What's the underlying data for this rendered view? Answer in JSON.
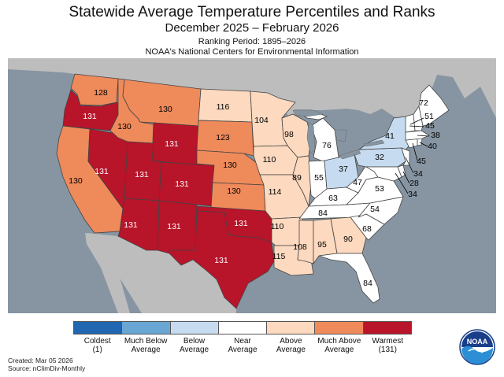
{
  "title": "Statewide Average Temperature Percentiles and Ranks",
  "subtitle": "December 2025 – February 2026",
  "ranking_period": "Ranking Period: 1895–2026",
  "source_org": "NOAA's National Centers for Environmental Information",
  "created": "Created: Mar 05 2026",
  "source": "Source: nClimDiv-Monthly",
  "logo_text": "NOAA",
  "colors": {
    "coldest": "#2066b0",
    "much_below": "#6aa6d4",
    "below": "#c6dbef",
    "near": "#ffffff",
    "above": "#fcd9bf",
    "much_above": "#ef8a5b",
    "warmest": "#b8142a",
    "ocean": "#8795a3",
    "land_outside": "#bdbdbd",
    "lakes": "#8795a3"
  },
  "legend": [
    {
      "label": "Coldest",
      "sub": "(1)",
      "color": "#2066b0"
    },
    {
      "label": "Much Below",
      "sub": "Average",
      "color": "#6aa6d4"
    },
    {
      "label": "Below",
      "sub": "Average",
      "color": "#c6dbef"
    },
    {
      "label": "Near",
      "sub": "Average",
      "color": "#ffffff"
    },
    {
      "label": "Above",
      "sub": "Average",
      "color": "#fcd9bf"
    },
    {
      "label": "Much Above",
      "sub": "Average",
      "color": "#ef8a5b"
    },
    {
      "label": "Warmest",
      "sub": "(131)",
      "color": "#b8142a"
    }
  ],
  "states": [
    {
      "id": "WA",
      "rank": "128",
      "cat": "much_above"
    },
    {
      "id": "OR",
      "rank": "131",
      "cat": "warmest"
    },
    {
      "id": "CA",
      "rank": "130",
      "cat": "much_above"
    },
    {
      "id": "ID",
      "rank": "130",
      "cat": "much_above"
    },
    {
      "id": "NV",
      "rank": "131",
      "cat": "warmest"
    },
    {
      "id": "MT",
      "rank": "130",
      "cat": "much_above"
    },
    {
      "id": "WY",
      "rank": "131",
      "cat": "warmest"
    },
    {
      "id": "UT",
      "rank": "131",
      "cat": "warmest"
    },
    {
      "id": "CO",
      "rank": "131",
      "cat": "warmest"
    },
    {
      "id": "AZ",
      "rank": "131",
      "cat": "warmest"
    },
    {
      "id": "NM",
      "rank": "131",
      "cat": "warmest"
    },
    {
      "id": "ND",
      "rank": "116",
      "cat": "above"
    },
    {
      "id": "SD",
      "rank": "123",
      "cat": "much_above"
    },
    {
      "id": "NE",
      "rank": "130",
      "cat": "much_above"
    },
    {
      "id": "KS",
      "rank": "130",
      "cat": "much_above"
    },
    {
      "id": "OK",
      "rank": "131",
      "cat": "warmest"
    },
    {
      "id": "TX",
      "rank": "131",
      "cat": "warmest"
    },
    {
      "id": "MN",
      "rank": "104",
      "cat": "above"
    },
    {
      "id": "IA",
      "rank": "110",
      "cat": "above"
    },
    {
      "id": "MO",
      "rank": "114",
      "cat": "above"
    },
    {
      "id": "AR",
      "rank": "110",
      "cat": "above"
    },
    {
      "id": "LA",
      "rank": "115",
      "cat": "above"
    },
    {
      "id": "WI",
      "rank": "98",
      "cat": "above"
    },
    {
      "id": "IL",
      "rank": "89",
      "cat": "above"
    },
    {
      "id": "MI",
      "rank": "76",
      "cat": "near"
    },
    {
      "id": "IN",
      "rank": "55",
      "cat": "near"
    },
    {
      "id": "OH",
      "rank": "37",
      "cat": "below"
    },
    {
      "id": "KY",
      "rank": "63",
      "cat": "near"
    },
    {
      "id": "TN",
      "rank": "84",
      "cat": "near"
    },
    {
      "id": "MS",
      "rank": "108",
      "cat": "above"
    },
    {
      "id": "AL",
      "rank": "95",
      "cat": "above"
    },
    {
      "id": "GA",
      "rank": "90",
      "cat": "above"
    },
    {
      "id": "FL",
      "rank": "84",
      "cat": "near"
    },
    {
      "id": "SC",
      "rank": "68",
      "cat": "near"
    },
    {
      "id": "NC",
      "rank": "54",
      "cat": "near"
    },
    {
      "id": "VA",
      "rank": "53",
      "cat": "near"
    },
    {
      "id": "WV",
      "rank": "47",
      "cat": "near"
    },
    {
      "id": "PA",
      "rank": "32",
      "cat": "below"
    },
    {
      "id": "NY",
      "rank": "41",
      "cat": "below"
    },
    {
      "id": "ME",
      "rank": "72",
      "cat": "near"
    },
    {
      "id": "NH",
      "rank": "51",
      "cat": "near"
    },
    {
      "id": "VT",
      "rank": "45",
      "cat": "near"
    },
    {
      "id": "MA",
      "rank": "38",
      "cat": "near"
    },
    {
      "id": "RI",
      "rank": "40",
      "cat": "near"
    },
    {
      "id": "CT",
      "rank": "45",
      "cat": "near"
    },
    {
      "id": "NJ",
      "rank": "34",
      "cat": "near"
    },
    {
      "id": "DE",
      "rank": "28",
      "cat": "near"
    },
    {
      "id": "MD",
      "rank": "34",
      "cat": "near"
    }
  ]
}
